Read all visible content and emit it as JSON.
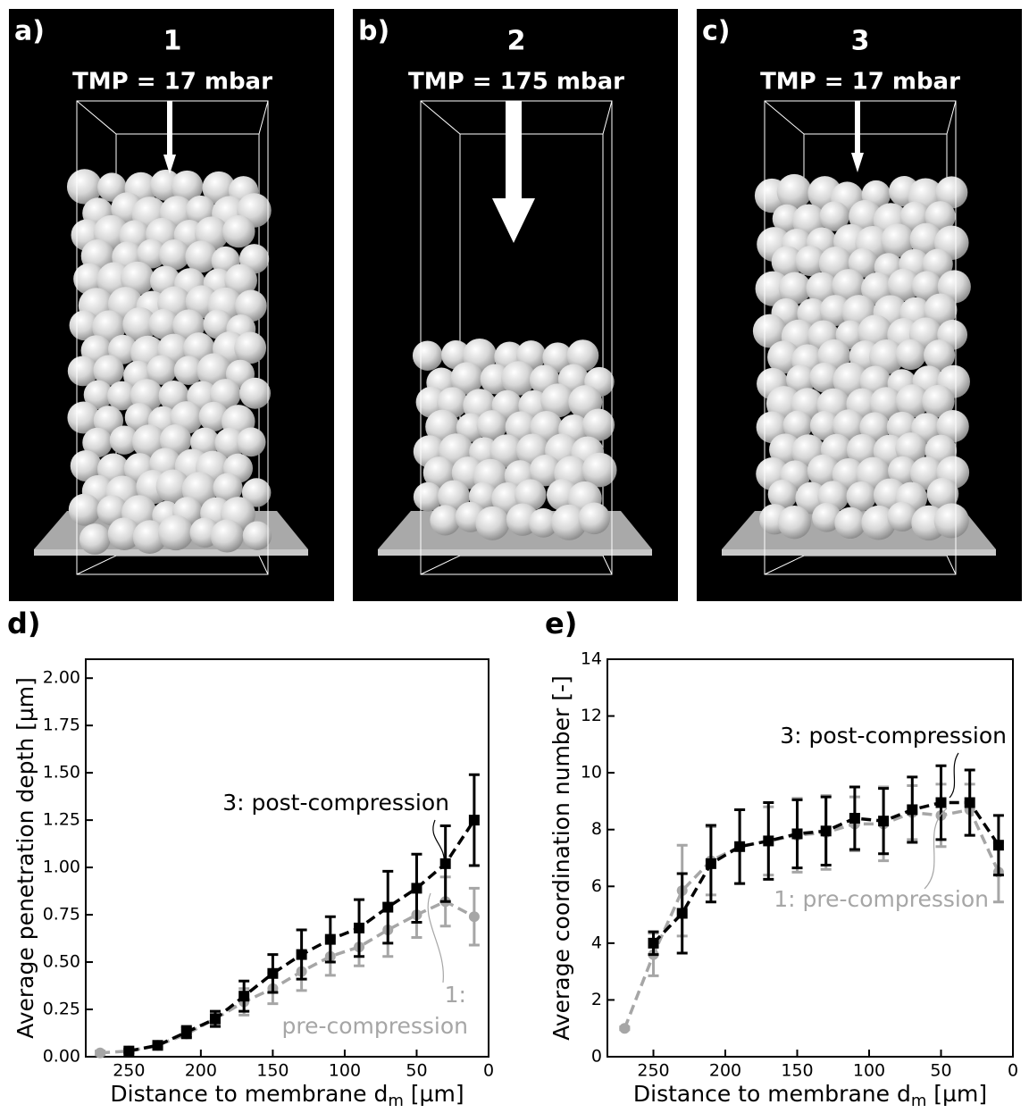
{
  "panels": [
    {
      "label": "a)",
      "number": "1",
      "tmp": "TMP = 17 mbar"
    },
    {
      "label": "b)",
      "number": "2",
      "tmp": "TMP = 175 mbar"
    },
    {
      "label": "c)",
      "number": "3",
      "tmp": "TMP = 17 mbar"
    }
  ],
  "chart_data": [
    {
      "type": "line",
      "label": "d)",
      "y_label": "Average penetration depth [µm]",
      "x_label": {
        "text": "Distance to membrane d",
        "subscript": "m",
        "unit": " [µm]"
      },
      "x": [
        270,
        250,
        230,
        210,
        190,
        170,
        150,
        130,
        110,
        90,
        70,
        50,
        30,
        10
      ],
      "xlim": [
        280,
        0
      ],
      "xticks": [
        250,
        200,
        150,
        100,
        50,
        0
      ],
      "ylim": [
        0,
        2.1
      ],
      "yticks": [
        {
          "value": 0,
          "label": "0.00"
        },
        {
          "value": 0.25,
          "label": "0.25"
        },
        {
          "value": 0.5,
          "label": "0.50"
        },
        {
          "value": 0.75,
          "label": "0.75"
        },
        {
          "value": 1,
          "label": "1.00"
        },
        {
          "value": 1.25,
          "label": "1.25"
        },
        {
          "value": 1.5,
          "label": "1.50"
        },
        {
          "value": 1.75,
          "label": "1.75"
        },
        {
          "value": 2,
          "label": "2.00"
        }
      ],
      "series": [
        {
          "color": "#a6a6a6",
          "marker": "circle",
          "values": [
            0.02,
            0.03,
            0.06,
            0.12,
            0.2,
            0.29,
            0.36,
            0.45,
            0.53,
            0.58,
            0.67,
            0.75,
            0.82,
            0.74
          ],
          "errors": [
            0.01,
            0.01,
            0.01,
            0.02,
            0.03,
            0.07,
            0.08,
            0.1,
            0.1,
            0.1,
            0.14,
            0.12,
            0.13,
            0.15
          ]
        },
        {
          "color": "#000000",
          "marker": "square",
          "values": [
            null,
            0.03,
            0.06,
            0.13,
            0.2,
            0.32,
            0.44,
            0.54,
            0.62,
            0.68,
            0.79,
            0.89,
            1.02,
            1.25
          ],
          "errors": [
            null,
            0.01,
            0.01,
            0.03,
            0.04,
            0.08,
            0.1,
            0.13,
            0.12,
            0.15,
            0.19,
            0.18,
            0.2,
            0.24
          ]
        }
      ],
      "annotations": [
        {
          "lines": [
            "3: post-compression"
          ],
          "color": "#000000"
        },
        {
          "lines": [
            "1:",
            "pre-compression"
          ],
          "color": "#a6a6a6"
        }
      ]
    },
    {
      "type": "line",
      "label": "e)",
      "y_label": "Average coordination number [-]",
      "x_label": {
        "text": "Distance to membrane d",
        "subscript": "m",
        "unit": " [µm]"
      },
      "x": [
        270,
        250,
        230,
        210,
        190,
        170,
        150,
        130,
        110,
        90,
        70,
        50,
        30,
        10
      ],
      "xlim": [
        282,
        0
      ],
      "xticks": [
        250,
        200,
        150,
        100,
        50,
        0
      ],
      "ylim": [
        0,
        14
      ],
      "yticks": [
        0,
        2,
        4,
        6,
        8,
        10,
        12,
        14
      ],
      "series": [
        {
          "color": "#a6a6a6",
          "marker": "circle",
          "values": [
            1.0,
            3.6,
            5.85,
            6.9,
            7.4,
            7.6,
            7.8,
            7.9,
            8.2,
            8.2,
            8.6,
            8.5,
            8.7,
            6.5
          ],
          "errors": [
            0.05,
            0.75,
            1.6,
            1.2,
            1.3,
            1.2,
            1.3,
            1.3,
            0.95,
            1.3,
            0.95,
            1.1,
            0.9,
            1.05
          ]
        },
        {
          "color": "#000000",
          "marker": "square",
          "values": [
            null,
            4.0,
            5.05,
            6.8,
            7.4,
            7.6,
            7.85,
            7.95,
            8.4,
            8.3,
            8.7,
            8.95,
            8.95,
            7.45
          ],
          "errors": [
            null,
            0.4,
            1.4,
            1.35,
            1.3,
            1.35,
            1.2,
            1.2,
            1.1,
            1.15,
            1.15,
            1.3,
            1.15,
            1.05
          ]
        }
      ],
      "annotations": [
        {
          "lines": [
            "3: post-compression"
          ],
          "color": "#000000"
        },
        {
          "lines": [
            "1: pre-compression"
          ],
          "color": "#a6a6a6"
        }
      ]
    }
  ]
}
